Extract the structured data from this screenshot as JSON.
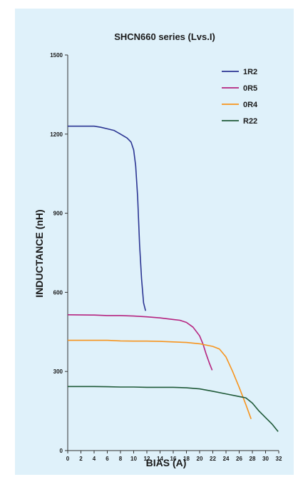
{
  "chart_data": {
    "type": "line",
    "title": "SHCN660 series (Lvs.I)",
    "xlabel": "BIAS (A)",
    "ylabel": "INDUCTANCE (nH)",
    "xlim": [
      0,
      32
    ],
    "ylim": [
      0,
      1500
    ],
    "xticks": [
      "0",
      "2",
      "4",
      "6",
      "8",
      "10",
      "12",
      "14",
      "16",
      "18",
      "20",
      "22",
      "24",
      "26",
      "28",
      "30",
      "32"
    ],
    "yticks": [
      "0",
      "300",
      "600",
      "900",
      "1200",
      "1500"
    ],
    "legend_position": "top-right",
    "grid": false,
    "series": [
      {
        "name": "1R2",
        "color": "#2b3593",
        "points": [
          [
            0,
            1230
          ],
          [
            2,
            1230
          ],
          [
            4,
            1230
          ],
          [
            5,
            1226
          ],
          [
            6,
            1220
          ],
          [
            7,
            1214
          ],
          [
            8,
            1200
          ],
          [
            9,
            1185
          ],
          [
            9.6,
            1170
          ],
          [
            10,
            1140
          ],
          [
            10.3,
            1080
          ],
          [
            10.6,
            960
          ],
          [
            10.9,
            780
          ],
          [
            11.2,
            650
          ],
          [
            11.5,
            560
          ],
          [
            11.8,
            530
          ]
        ]
      },
      {
        "name": "0R5",
        "color": "#b5237f",
        "points": [
          [
            0,
            515
          ],
          [
            4,
            514
          ],
          [
            6,
            512
          ],
          [
            8,
            512
          ],
          [
            10,
            510
          ],
          [
            12,
            507
          ],
          [
            14,
            503
          ],
          [
            16,
            497
          ],
          [
            17,
            494
          ],
          [
            18,
            486
          ],
          [
            19,
            468
          ],
          [
            20,
            435
          ],
          [
            20.5,
            405
          ],
          [
            21,
            365
          ],
          [
            21.5,
            330
          ],
          [
            21.9,
            305
          ]
        ]
      },
      {
        "name": "0R4",
        "color": "#f7941d",
        "points": [
          [
            0,
            418
          ],
          [
            4,
            418
          ],
          [
            6,
            418
          ],
          [
            8,
            416
          ],
          [
            10,
            415
          ],
          [
            12,
            415
          ],
          [
            14,
            414
          ],
          [
            16,
            412
          ],
          [
            18,
            410
          ],
          [
            20,
            405
          ],
          [
            22,
            395
          ],
          [
            23,
            385
          ],
          [
            24,
            355
          ],
          [
            25,
            300
          ],
          [
            26,
            240
          ],
          [
            27,
            175
          ],
          [
            27.8,
            120
          ]
        ]
      },
      {
        "name": "R22",
        "color": "#1f5a38",
        "points": [
          [
            0,
            243
          ],
          [
            4,
            243
          ],
          [
            6,
            242
          ],
          [
            8,
            241
          ],
          [
            10,
            241
          ],
          [
            12,
            240
          ],
          [
            14,
            240
          ],
          [
            16,
            240
          ],
          [
            18,
            238
          ],
          [
            20,
            234
          ],
          [
            22,
            225
          ],
          [
            24,
            215
          ],
          [
            26,
            205
          ],
          [
            27,
            200
          ],
          [
            28,
            180
          ],
          [
            29,
            150
          ],
          [
            30,
            125
          ],
          [
            31,
            100
          ],
          [
            31.9,
            72
          ]
        ]
      }
    ]
  }
}
